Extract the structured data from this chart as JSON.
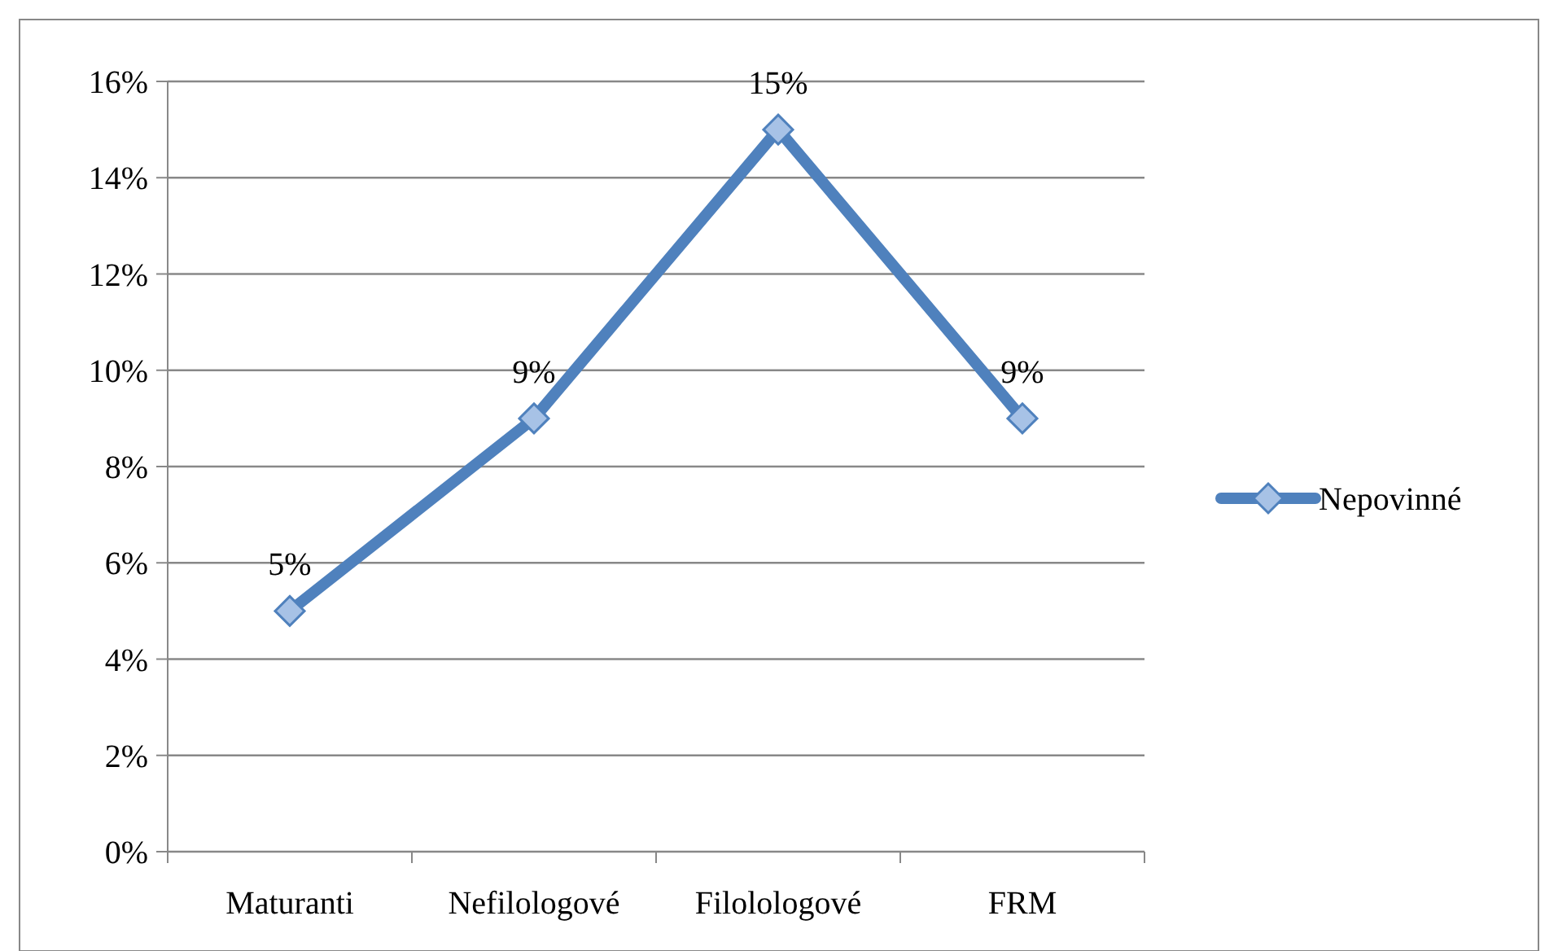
{
  "chart_data": {
    "type": "line",
    "categories": [
      "Maturanti",
      "Nefilologové",
      "Filolologové",
      "FRM"
    ],
    "series": [
      {
        "name": "Nepovinné",
        "color": "#4f81bd",
        "values": [
          5,
          9,
          15,
          9
        ],
        "value_labels": [
          "5%",
          "9%",
          "15%",
          "9%"
        ]
      }
    ],
    "ylim": [
      0,
      16
    ],
    "yticks": [
      {
        "value": 0,
        "label": "0%"
      },
      {
        "value": 2,
        "label": "2%"
      },
      {
        "value": 4,
        "label": "4%"
      },
      {
        "value": 6,
        "label": "6%"
      },
      {
        "value": 8,
        "label": "8%"
      },
      {
        "value": 10,
        "label": "10%"
      },
      {
        "value": 12,
        "label": "12%"
      },
      {
        "value": 14,
        "label": "14%"
      },
      {
        "value": 16,
        "label": "16%"
      }
    ],
    "grid": "y",
    "legend": "right",
    "marker": "diamond",
    "line_style": "solid"
  }
}
